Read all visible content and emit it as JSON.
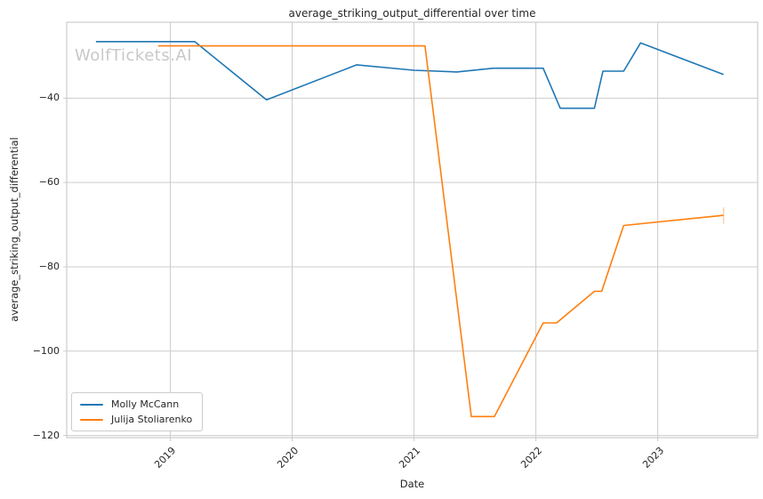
{
  "watermark": "WolfTickets.AI",
  "colors": {
    "background": "#ffffff",
    "grid": "#cccccc",
    "spine": "#cccccc",
    "text": "#262626",
    "watermark": "#c8c8c8",
    "series_blue": "#1f77b4",
    "series_orange": "#ff7f0e"
  },
  "chart_data": {
    "type": "line",
    "title": "average_striking_output_differential over time",
    "xlabel": "Date",
    "ylabel": "average_striking_output_differential",
    "xlim": [
      2018.15,
      2023.82
    ],
    "ylim": [
      -120.5,
      -22
    ],
    "grid": true,
    "legend_position": "lower-left",
    "x_ticks": [
      {
        "value": 2019,
        "label": "2019"
      },
      {
        "value": 2020,
        "label": "2020"
      },
      {
        "value": 2021,
        "label": "2021"
      },
      {
        "value": 2022,
        "label": "2022"
      },
      {
        "value": 2023,
        "label": "2023"
      }
    ],
    "y_ticks": [
      {
        "value": -40,
        "label": "−40"
      },
      {
        "value": -60,
        "label": "−60"
      },
      {
        "value": -80,
        "label": "−80"
      },
      {
        "value": -100,
        "label": "−100"
      },
      {
        "value": -120,
        "label": "−120"
      }
    ],
    "series": [
      {
        "name": "Molly McCann",
        "color": "#1f77b4",
        "points": [
          [
            2018.39,
            -26.6
          ],
          [
            2019.2,
            -26.6
          ],
          [
            2019.79,
            -40.4
          ],
          [
            2020.53,
            -32.1
          ],
          [
            2021.0,
            -33.4
          ],
          [
            2021.35,
            -33.8
          ],
          [
            2021.65,
            -32.9
          ],
          [
            2022.06,
            -32.9
          ],
          [
            2022.2,
            -42.4
          ],
          [
            2022.48,
            -42.4
          ],
          [
            2022.55,
            -33.6
          ],
          [
            2022.72,
            -33.6
          ],
          [
            2022.86,
            -26.9
          ],
          [
            2023.54,
            -34.4
          ]
        ]
      },
      {
        "name": "Julija Stoliarenko",
        "color": "#ff7f0e",
        "points": [
          [
            2018.9,
            -27.6
          ],
          [
            2021.09,
            -27.6
          ],
          [
            2021.47,
            -115.5
          ],
          [
            2021.66,
            -115.5
          ],
          [
            2022.06,
            -93.3
          ],
          [
            2022.17,
            -93.3
          ],
          [
            2022.48,
            -85.8
          ],
          [
            2022.54,
            -85.8
          ],
          [
            2022.72,
            -70.2
          ],
          [
            2023.54,
            -67.8
          ]
        ],
        "end_cap": {
          "x": 2023.54,
          "y_top": -65.9,
          "y_bottom": -69.8
        }
      }
    ]
  }
}
